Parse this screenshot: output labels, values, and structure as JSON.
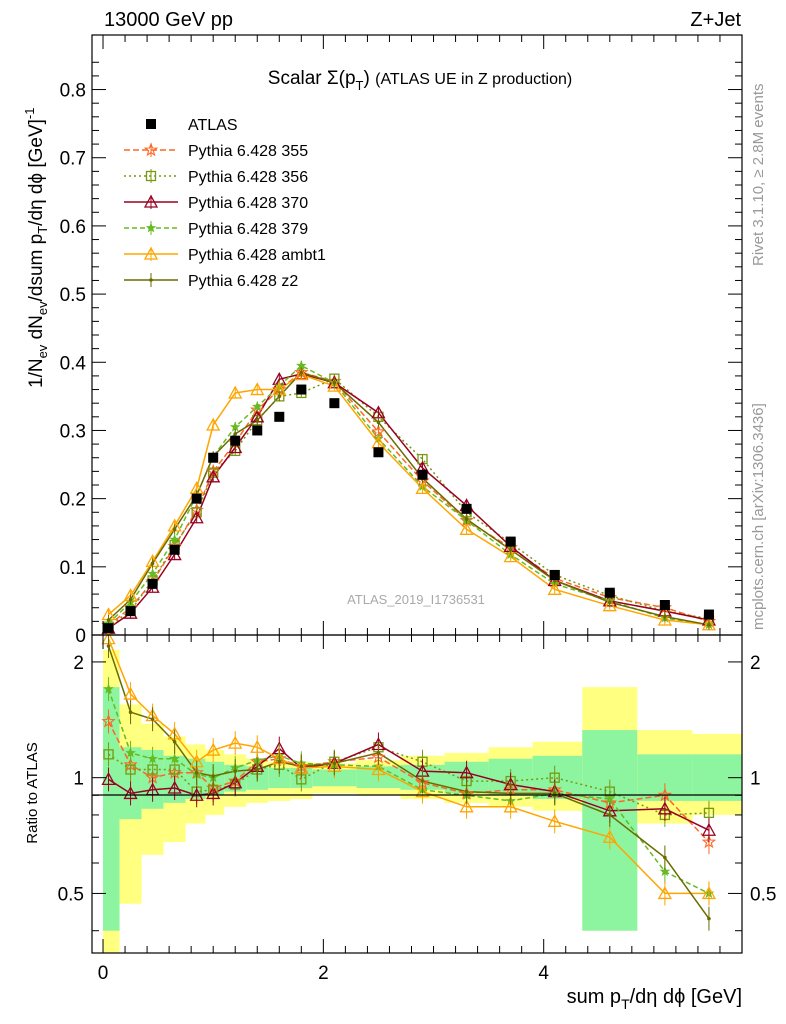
{
  "header": {
    "left": "13000 GeV pp",
    "right": "Z+Jet"
  },
  "side_labels": {
    "rivet": "Rivet 3.1.10, ≥ 2.8M events",
    "mcplots": "mcplots.cern.ch [arXiv:1306.3436]"
  },
  "colors": {
    "data": "#000000",
    "p355": "#ff6622",
    "p356": "#779911",
    "p370": "#990022",
    "p379": "#66bb22",
    "ambt1": "#ffa500",
    "z2": "#6b6b00",
    "band_inner": "#8df5a0",
    "band_outer": "#ffff80"
  },
  "chart_data": [
    {
      "type": "line",
      "panel": "main",
      "title": "Scalar Σ(p_T) (ATLAS UE in Z production)",
      "xlabel": "sum p_T/dη dφ [GeV]",
      "ylabel": "1/N_ev dN_ev/dsum p_T/dη dφ [GeV]^-1",
      "watermark": "ATLAS_2019_I1736531",
      "xlim": [
        -0.1,
        5.8
      ],
      "ylim": [
        0,
        0.88
      ],
      "yticks": [
        0,
        0.1,
        0.2,
        0.3,
        0.4,
        0.5,
        0.6,
        0.7,
        0.8
      ],
      "xticks": [
        0,
        2,
        4
      ],
      "grid": false,
      "legend_position": "top-left",
      "x": [
        0.05,
        0.25,
        0.45,
        0.65,
        0.85,
        1.0,
        1.2,
        1.4,
        1.6,
        1.8,
        2.1,
        2.5,
        2.9,
        3.3,
        3.7,
        4.1,
        4.6,
        5.1,
        5.5
      ],
      "series": [
        {
          "name": "ATLAS",
          "key": "data",
          "marker": "square",
          "values": [
            0.01,
            0.035,
            0.075,
            0.125,
            0.2,
            0.26,
            0.285,
            0.3,
            0.32,
            0.36,
            0.34,
            0.268,
            0.235,
            0.185,
            0.137,
            0.088,
            0.062,
            0.044,
            0.03
          ]
        },
        {
          "name": "Pythia 6.428 355",
          "key": "p355",
          "marker": "star",
          "dash": "6,3",
          "values": [
            0.014,
            0.04,
            0.078,
            0.13,
            0.183,
            0.24,
            0.282,
            0.33,
            0.36,
            0.385,
            0.372,
            0.298,
            0.226,
            0.168,
            0.128,
            0.083,
            0.055,
            0.04,
            0.02
          ]
        },
        {
          "name": "Pythia 6.428 356",
          "key": "p356",
          "marker": "open-square",
          "dash": "2,3",
          "values": [
            0.012,
            0.036,
            0.08,
            0.132,
            0.18,
            0.238,
            0.27,
            0.315,
            0.35,
            0.355,
            0.376,
            0.32,
            0.258,
            0.18,
            0.135,
            0.088,
            0.058,
            0.035,
            0.024
          ]
        },
        {
          "name": "Pythia 6.428 370",
          "key": "p370",
          "marker": "open-triangle",
          "dash": "",
          "values": [
            0.01,
            0.032,
            0.07,
            0.118,
            0.172,
            0.232,
            0.275,
            0.32,
            0.375,
            0.383,
            0.37,
            0.326,
            0.245,
            0.19,
            0.13,
            0.08,
            0.05,
            0.035,
            0.022
          ]
        },
        {
          "name": "Pythia 6.428 379",
          "key": "p379",
          "marker": "small-star",
          "dash": "5,3",
          "values": [
            0.017,
            0.048,
            0.09,
            0.14,
            0.205,
            0.262,
            0.305,
            0.335,
            0.365,
            0.395,
            0.37,
            0.288,
            0.218,
            0.168,
            0.118,
            0.075,
            0.05,
            0.025,
            0.015
          ]
        },
        {
          "name": "Pythia 6.428 ambt1",
          "key": "ambt1",
          "marker": "open-triangle",
          "dash": "",
          "values": [
            0.03,
            0.058,
            0.108,
            0.16,
            0.215,
            0.308,
            0.355,
            0.36,
            0.36,
            0.382,
            0.365,
            0.282,
            0.215,
            0.155,
            0.115,
            0.067,
            0.043,
            0.022,
            0.015
          ]
        },
        {
          "name": "Pythia 6.428 z2",
          "key": "z2",
          "marker": "dot",
          "dash": "",
          "values": [
            0.022,
            0.052,
            0.105,
            0.155,
            0.205,
            0.262,
            0.295,
            0.315,
            0.35,
            0.385,
            0.37,
            0.312,
            0.23,
            0.17,
            0.125,
            0.08,
            0.048,
            0.027,
            0.015
          ]
        }
      ]
    },
    {
      "type": "line",
      "panel": "ratio",
      "ylabel": "Ratio to ATLAS",
      "xlim": [
        -0.1,
        5.8
      ],
      "ylim": [
        0.35,
        2.35
      ],
      "yticks": [
        0.5,
        1,
        2
      ],
      "x": [
        0.05,
        0.25,
        0.45,
        0.65,
        0.85,
        1.0,
        1.2,
        1.4,
        1.6,
        1.8,
        2.1,
        2.5,
        2.9,
        3.3,
        3.7,
        4.1,
        4.6,
        5.1,
        5.5
      ],
      "bands": {
        "edges": [
          0.0,
          0.15,
          0.35,
          0.55,
          0.75,
          0.93,
          1.1,
          1.3,
          1.5,
          1.7,
          1.9,
          2.3,
          2.7,
          3.1,
          3.5,
          3.9,
          4.35,
          4.85,
          5.35,
          5.8
        ],
        "inner": [
          [
            0.4,
            1.72
          ],
          [
            0.78,
            1.2
          ],
          [
            0.83,
            1.18
          ],
          [
            0.86,
            1.14
          ],
          [
            0.88,
            1.12
          ],
          [
            0.9,
            1.1
          ],
          [
            0.92,
            1.08
          ],
          [
            0.93,
            1.07
          ],
          [
            0.94,
            1.06
          ],
          [
            0.94,
            1.06
          ],
          [
            0.95,
            1.05
          ],
          [
            0.94,
            1.07
          ],
          [
            0.93,
            1.08
          ],
          [
            0.91,
            1.1
          ],
          [
            0.9,
            1.12
          ],
          [
            0.88,
            1.14
          ],
          [
            0.4,
            1.33
          ],
          [
            0.87,
            1.15
          ],
          [
            0.87,
            1.15
          ]
        ],
        "outer": [
          [
            0.35,
            2.15
          ],
          [
            0.47,
            1.55
          ],
          [
            0.63,
            1.38
          ],
          [
            0.68,
            1.28
          ],
          [
            0.76,
            1.22
          ],
          [
            0.8,
            1.18
          ],
          [
            0.84,
            1.15
          ],
          [
            0.86,
            1.12
          ],
          [
            0.87,
            1.1
          ],
          [
            0.88,
            1.1
          ],
          [
            0.91,
            1.09
          ],
          [
            0.9,
            1.11
          ],
          [
            0.88,
            1.14
          ],
          [
            0.86,
            1.16
          ],
          [
            0.84,
            1.2
          ],
          [
            0.82,
            1.24
          ],
          [
            0.4,
            1.72
          ],
          [
            0.76,
            1.33
          ],
          [
            0.8,
            1.3
          ]
        ]
      },
      "series": [
        {
          "name": "Pythia 6.428 355",
          "key": "p355",
          "marker": "star",
          "dash": "6,3",
          "values": [
            1.4,
            1.08,
            1.0,
            1.03,
            1.03,
            0.94,
            0.98,
            1.1,
            1.12,
            1.07,
            1.1,
            1.13,
            0.97,
            0.91,
            0.93,
            0.93,
            0.86,
            0.9,
            0.68
          ]
        },
        {
          "name": "Pythia 6.428 356",
          "key": "p356",
          "marker": "open-square",
          "dash": "2,3",
          "values": [
            1.15,
            1.05,
            1.05,
            1.05,
            0.92,
            0.93,
            0.96,
            1.05,
            1.08,
            0.99,
            1.1,
            1.2,
            1.1,
            0.98,
            0.98,
            1.0,
            0.92,
            0.8,
            0.81
          ]
        },
        {
          "name": "Pythia 6.428 370",
          "key": "p370",
          "marker": "open-triangle",
          "dash": "",
          "values": [
            0.99,
            0.91,
            0.93,
            0.94,
            0.9,
            0.91,
            0.97,
            1.07,
            1.19,
            1.06,
            1.09,
            1.22,
            1.04,
            1.03,
            0.96,
            0.92,
            0.82,
            0.83,
            0.73
          ]
        },
        {
          "name": "Pythia 6.428 379",
          "key": "p379",
          "marker": "small-star",
          "dash": "5,3",
          "values": [
            1.7,
            1.16,
            1.12,
            1.12,
            1.02,
            1.0,
            1.06,
            1.11,
            1.14,
            1.09,
            1.08,
            1.07,
            0.93,
            0.9,
            0.87,
            0.91,
            0.88,
            0.57,
            0.5
          ]
        },
        {
          "name": "Pythia 6.428 ambt1",
          "key": "ambt1",
          "marker": "open-triangle",
          "dash": "",
          "values": [
            2.3,
            1.65,
            1.45,
            1.3,
            1.1,
            1.18,
            1.23,
            1.2,
            1.12,
            1.06,
            1.07,
            1.05,
            0.92,
            0.84,
            0.84,
            0.77,
            0.7,
            0.5,
            0.5
          ]
        },
        {
          "name": "Pythia 6.428 z2",
          "key": "z2",
          "marker": "dot",
          "dash": "",
          "values": [
            2.2,
            1.48,
            1.42,
            1.24,
            1.03,
            1.01,
            1.04,
            1.05,
            1.1,
            1.07,
            1.09,
            1.16,
            0.98,
            0.92,
            0.91,
            0.91,
            0.8,
            0.62,
            0.43
          ]
        }
      ]
    }
  ]
}
